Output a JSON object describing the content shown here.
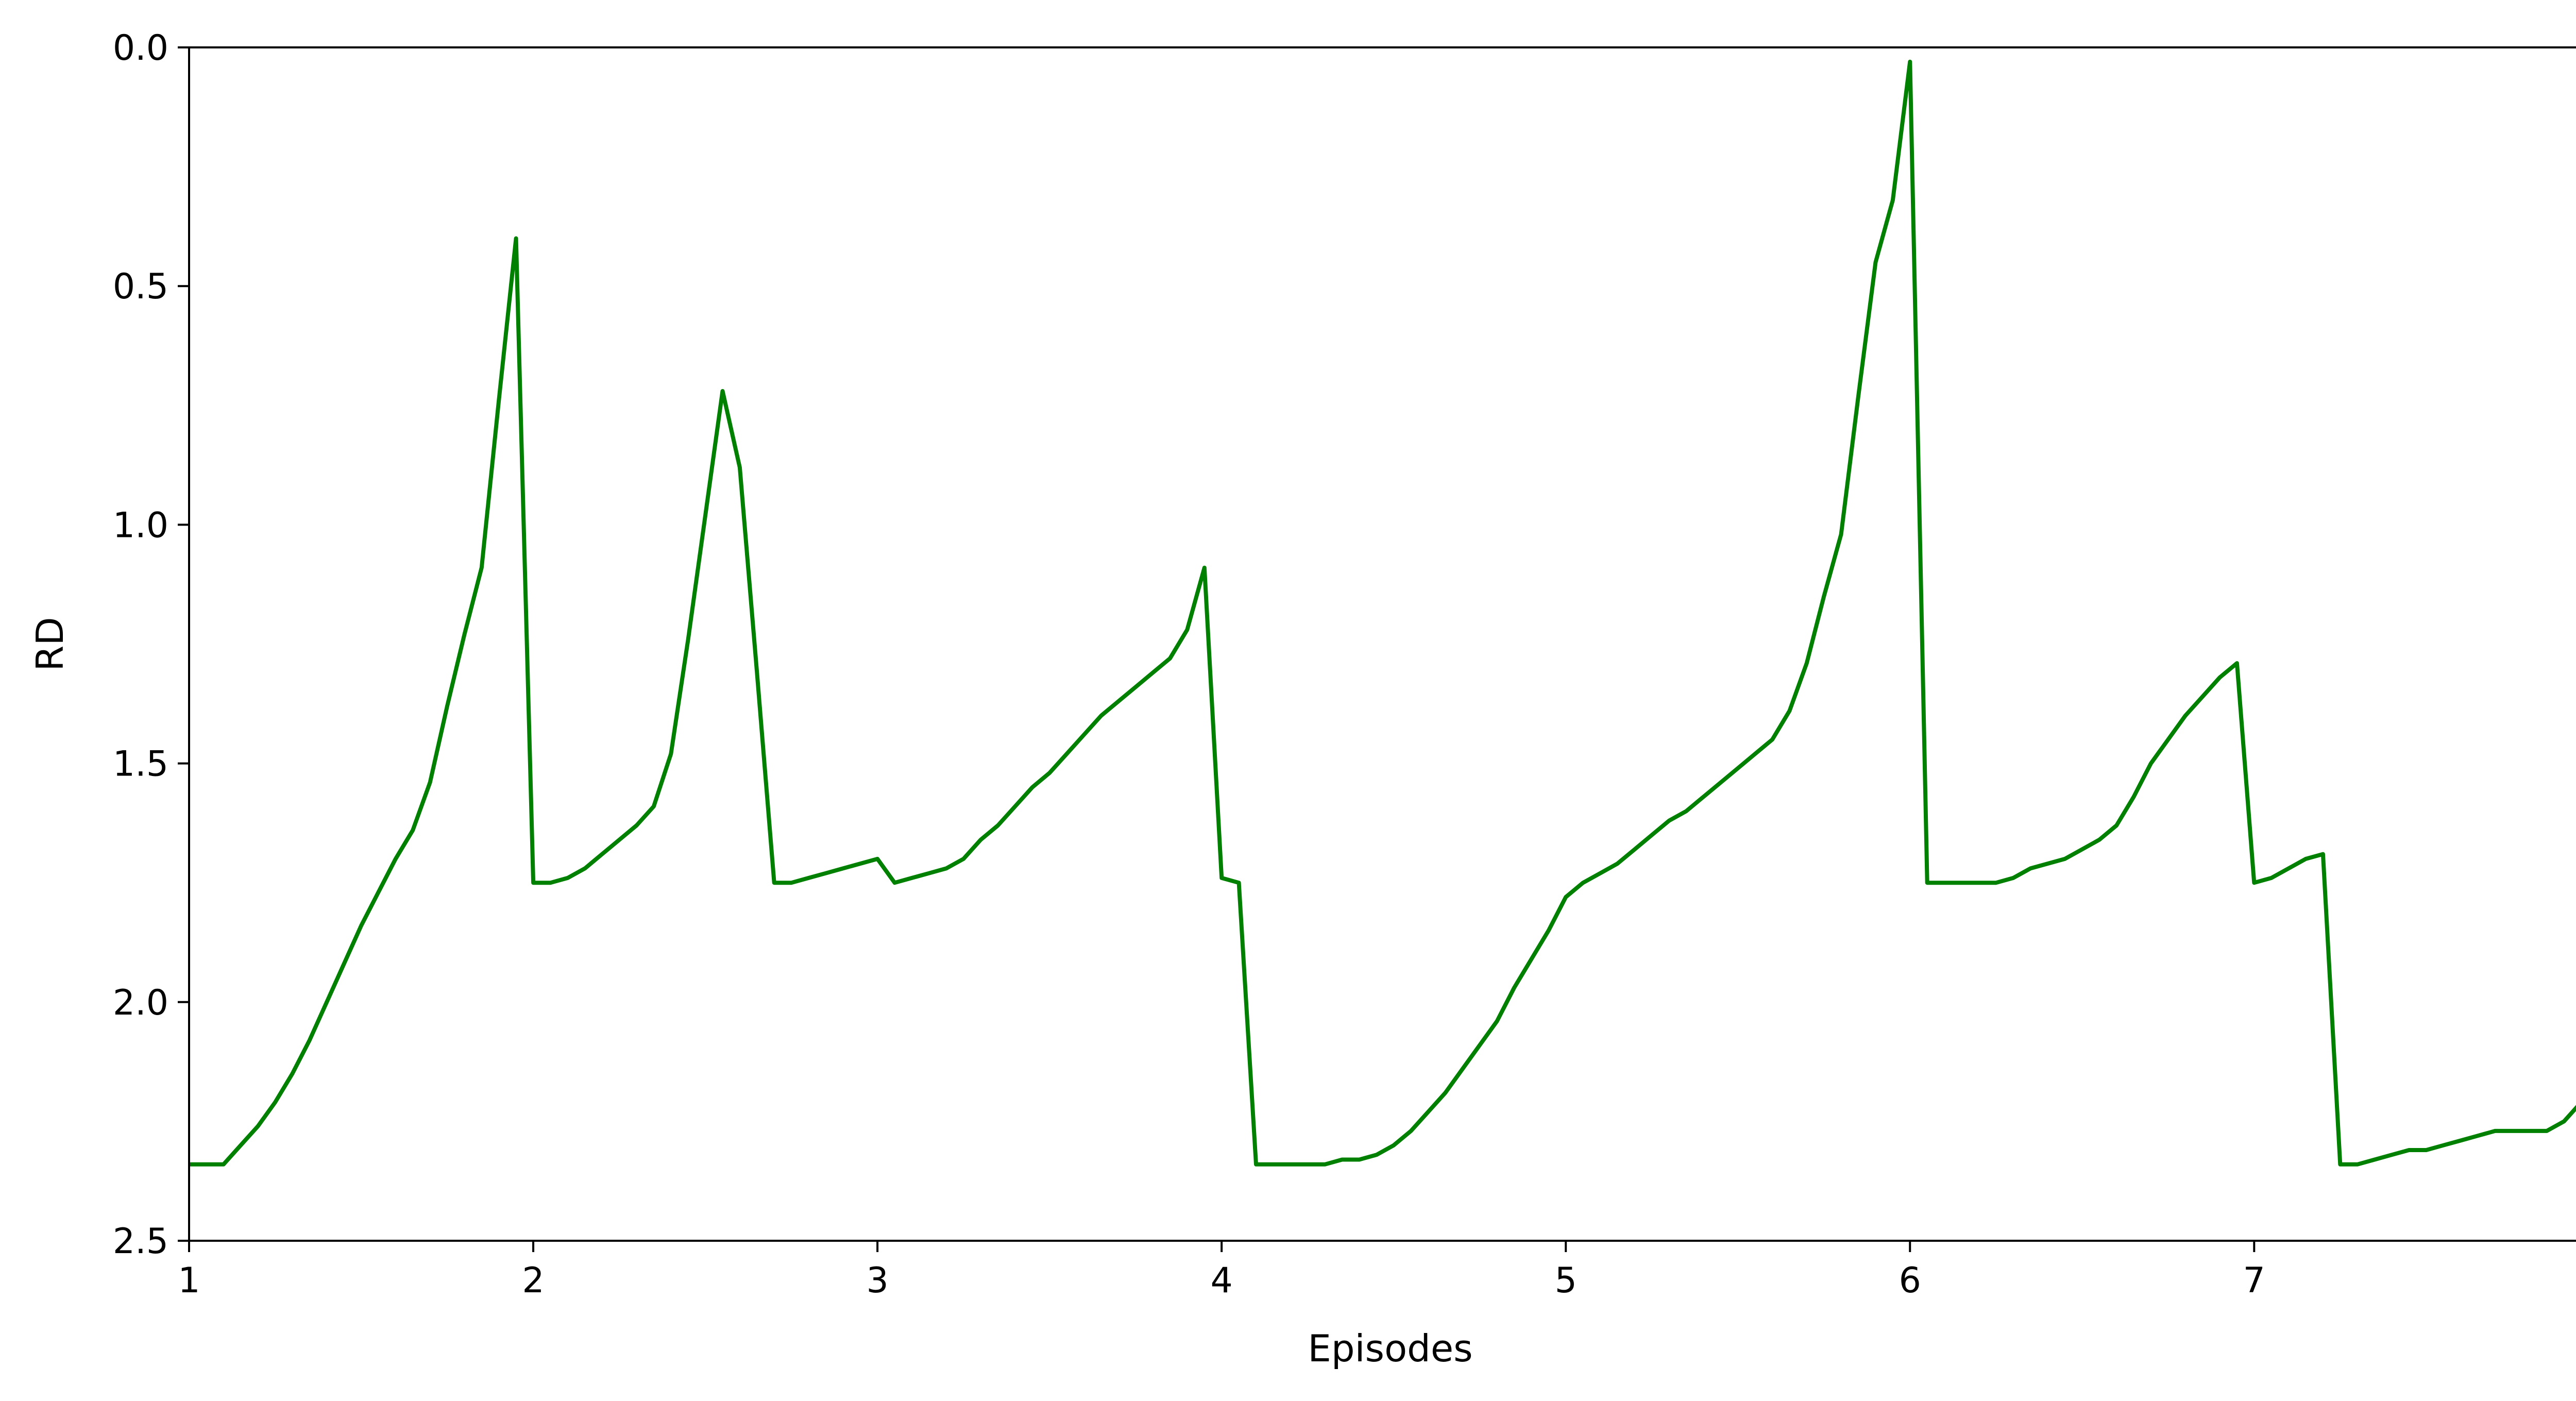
{
  "chart_data": {
    "type": "line",
    "title": "",
    "xlabel": "Episodes",
    "ylabel": "RD",
    "xlim": [
      1,
      7.98
    ],
    "ylim": [
      0,
      2.5
    ],
    "y_inverted": true,
    "grid": false,
    "legend": "none",
    "x_ticks": [
      {
        "value": 1,
        "label": "1"
      },
      {
        "value": 2,
        "label": "2"
      },
      {
        "value": 3,
        "label": "3"
      },
      {
        "value": 4,
        "label": "4"
      },
      {
        "value": 5,
        "label": "5"
      },
      {
        "value": 6,
        "label": "6"
      },
      {
        "value": 7,
        "label": "7"
      }
    ],
    "y_ticks": [
      {
        "value": 0.0,
        "label": "0.0"
      },
      {
        "value": 0.5,
        "label": "0.5"
      },
      {
        "value": 1.0,
        "label": "1.0"
      },
      {
        "value": 1.5,
        "label": "1.5"
      },
      {
        "value": 2.0,
        "label": "2.0"
      },
      {
        "value": 2.5,
        "label": "2.5"
      }
    ],
    "series": [
      {
        "color": "#008000",
        "x": [
          1.0,
          1.05,
          1.1,
          1.15,
          1.2,
          1.25,
          1.3,
          1.35,
          1.4,
          1.45,
          1.5,
          1.55,
          1.6,
          1.65,
          1.7,
          1.75,
          1.8,
          1.85,
          1.9,
          1.95,
          2.0,
          2.05,
          2.1,
          2.15,
          2.2,
          2.25,
          2.3,
          2.35,
          2.4,
          2.45,
          2.5,
          2.55,
          2.6,
          2.65,
          2.7,
          2.75,
          2.8,
          2.85,
          2.9,
          2.95,
          3.0,
          3.05,
          3.1,
          3.15,
          3.2,
          3.25,
          3.3,
          3.35,
          3.4,
          3.45,
          3.5,
          3.55,
          3.6,
          3.65,
          3.7,
          3.75,
          3.8,
          3.85,
          3.9,
          3.95,
          4.0,
          4.05,
          4.1,
          4.15,
          4.2,
          4.25,
          4.3,
          4.35,
          4.4,
          4.45,
          4.5,
          4.55,
          4.6,
          4.65,
          4.7,
          4.75,
          4.8,
          4.85,
          4.9,
          4.95,
          5.0,
          5.05,
          5.1,
          5.15,
          5.2,
          5.25,
          5.3,
          5.35,
          5.4,
          5.45,
          5.5,
          5.55,
          5.6,
          5.65,
          5.7,
          5.75,
          5.8,
          5.85,
          5.9,
          5.95,
          6.0,
          6.05,
          6.1,
          6.15,
          6.2,
          6.25,
          6.3,
          6.35,
          6.4,
          6.45,
          6.5,
          6.55,
          6.6,
          6.65,
          6.7,
          6.75,
          6.8,
          6.85,
          6.9,
          6.95,
          7.0,
          7.05,
          7.1,
          7.15,
          7.2,
          7.25,
          7.3,
          7.35,
          7.4,
          7.45,
          7.5,
          7.55,
          7.6,
          7.65,
          7.7,
          7.75,
          7.8,
          7.85,
          7.9,
          7.95
        ],
        "y": [
          2.34,
          2.34,
          2.34,
          2.3,
          2.26,
          2.21,
          2.15,
          2.08,
          2.0,
          1.92,
          1.84,
          1.77,
          1.7,
          1.64,
          1.54,
          1.38,
          1.23,
          1.09,
          0.74,
          0.4,
          1.75,
          1.75,
          1.74,
          1.72,
          1.69,
          1.66,
          1.63,
          1.59,
          1.48,
          1.24,
          0.98,
          0.72,
          0.88,
          1.31,
          1.75,
          1.75,
          1.74,
          1.73,
          1.72,
          1.71,
          1.7,
          1.75,
          1.74,
          1.73,
          1.72,
          1.7,
          1.66,
          1.63,
          1.59,
          1.55,
          1.52,
          1.48,
          1.44,
          1.4,
          1.37,
          1.34,
          1.31,
          1.28,
          1.22,
          1.09,
          1.74,
          1.75,
          2.34,
          2.34,
          2.34,
          2.34,
          2.34,
          2.33,
          2.33,
          2.32,
          2.3,
          2.27,
          2.23,
          2.19,
          2.14,
          2.09,
          2.04,
          1.97,
          1.91,
          1.85,
          1.78,
          1.75,
          1.73,
          1.71,
          1.68,
          1.65,
          1.62,
          1.6,
          1.57,
          1.54,
          1.51,
          1.48,
          1.45,
          1.39,
          1.29,
          1.15,
          1.02,
          0.73,
          0.45,
          0.32,
          0.03,
          1.75,
          1.75,
          1.75,
          1.75,
          1.75,
          1.74,
          1.72,
          1.71,
          1.7,
          1.68,
          1.66,
          1.63,
          1.57,
          1.5,
          1.45,
          1.4,
          1.36,
          1.32,
          1.29,
          1.75,
          1.74,
          1.72,
          1.7,
          1.69,
          2.34,
          2.34,
          2.33,
          2.32,
          2.31,
          2.31,
          2.3,
          2.29,
          2.28,
          2.27,
          2.27,
          2.27,
          2.27,
          2.25,
          2.21
        ]
      }
    ]
  }
}
